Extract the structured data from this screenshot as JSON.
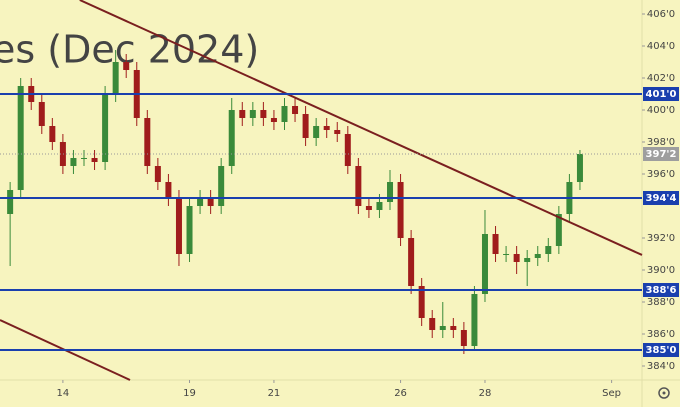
{
  "chart_data": {
    "type": "candlestick",
    "watermark": "es (Dec 2024)",
    "up_color": "#3a8a3a",
    "down_color": "#a01c1c",
    "x": [
      -1.25,
      -1,
      -0.75,
      -0.5,
      -0.25,
      0,
      0.25,
      0.5,
      0.75,
      1,
      1.25,
      1.5,
      1.75,
      2,
      2.25,
      2.5,
      2.75,
      3,
      3.25,
      3.5,
      3.75,
      4,
      4.25,
      4.5,
      4.75,
      5,
      5.25,
      5.5,
      5.75,
      6,
      6.25,
      6.5,
      6.75,
      7,
      7.25,
      7.5,
      7.75,
      8,
      8.25,
      8.5,
      8.75,
      9,
      9.25,
      9.5,
      9.75,
      10,
      10.25,
      10.5,
      10.75,
      11,
      11.25,
      11.5,
      11.75,
      12,
      12.25
    ],
    "open": [
      393.5,
      395,
      401.5,
      400.5,
      399,
      398,
      396.5,
      397,
      397,
      396.75,
      401,
      403,
      402.5,
      399.5,
      396.5,
      395.5,
      394.5,
      391,
      394,
      394.5,
      394,
      396.5,
      400,
      399.5,
      400,
      399.5,
      399.25,
      400.25,
      399.75,
      398.25,
      399,
      398.75,
      398.5,
      396.5,
      394,
      393.75,
      394.25,
      395.5,
      392,
      389,
      387,
      386.25,
      386.5,
      386.25,
      385.25,
      388.5,
      392.25,
      391,
      391,
      390.5,
      390.75,
      391,
      391.5,
      393.5,
      395.5
    ],
    "high": [
      395.5,
      402,
      402,
      401,
      399.5,
      398.5,
      397.5,
      397.5,
      397.5,
      401.5,
      403.75,
      403.5,
      403,
      400,
      397,
      396,
      395,
      394.5,
      395,
      395,
      397,
      400.75,
      400.5,
      400.5,
      400.5,
      400,
      400.75,
      400.75,
      400.25,
      399.5,
      399.5,
      399.25,
      399,
      397,
      394.5,
      394.75,
      396.25,
      396,
      392.5,
      389.5,
      387.5,
      388,
      387,
      386.75,
      389,
      393.75,
      392.75,
      391.5,
      391.5,
      391.25,
      391.5,
      392,
      394,
      396,
      397.5
    ],
    "low": [
      390.25,
      394.5,
      400,
      398.5,
      397.5,
      396,
      396,
      396.5,
      396.25,
      396.25,
      400.5,
      402,
      399,
      396,
      395,
      394,
      390.25,
      390.5,
      393.5,
      393.5,
      393.5,
      396,
      399,
      399,
      399,
      398.75,
      398.75,
      399.25,
      397.75,
      397.75,
      398.25,
      398,
      396,
      393.5,
      393.25,
      393.25,
      393.75,
      391.5,
      388.5,
      386.5,
      385.75,
      385.75,
      385.75,
      384.75,
      385,
      388,
      390.5,
      390.5,
      389.75,
      389,
      390.25,
      390.5,
      391,
      393,
      395
    ],
    "close": [
      395,
      401.5,
      400.5,
      399,
      398,
      396.5,
      397,
      397,
      396.75,
      401,
      403,
      402.5,
      399.5,
      396.5,
      395.5,
      394.5,
      391,
      394,
      394.5,
      394,
      396.5,
      400,
      399.5,
      400,
      399.5,
      399.25,
      400.25,
      399.75,
      398.25,
      399,
      398.75,
      398.5,
      396.5,
      394,
      393.75,
      394.25,
      395.5,
      392,
      389,
      387,
      386.25,
      386.5,
      386.25,
      385.25,
      388.5,
      392.25,
      391,
      391,
      390.5,
      390.75,
      391,
      391.5,
      393.5,
      395.5,
      397.25
    ],
    "xlim": [
      -1.49,
      13.72
    ],
    "ylim": [
      383.125,
      406.875
    ],
    "xticks": [
      {
        "value": 0,
        "label": "14"
      },
      {
        "value": 3,
        "label": "19"
      },
      {
        "value": 5,
        "label": "21"
      },
      {
        "value": 8,
        "label": "26"
      },
      {
        "value": 10,
        "label": "28"
      },
      {
        "value": 13,
        "label": "Sep"
      }
    ],
    "yticks": [
      {
        "value": 406,
        "label": "406'0"
      },
      {
        "value": 404,
        "label": "404'0"
      },
      {
        "value": 402,
        "label": "402'0"
      },
      {
        "value": 400,
        "label": "400'0"
      },
      {
        "value": 398,
        "label": "398'0"
      },
      {
        "value": 396,
        "label": "396'0"
      },
      {
        "value": 392,
        "label": "392'0"
      },
      {
        "value": 390,
        "label": "390'0"
      },
      {
        "value": 388,
        "label": "388'0"
      },
      {
        "value": 386,
        "label": "386'0"
      },
      {
        "value": 384,
        "label": "384'0"
      }
    ],
    "levels": [
      {
        "value": 401,
        "label": "401'0"
      },
      {
        "value": 394.5,
        "label": "394'4"
      },
      {
        "value": 388.75,
        "label": "388'6"
      },
      {
        "value": 385,
        "label": "385'0"
      }
    ],
    "level_color": "#1a3fae",
    "current_price": {
      "value": 397.25,
      "label": "397'2"
    },
    "trendlines": [
      {
        "x": [
          0.4,
          13.72
        ],
        "y": [
          406.875,
          390.94
        ]
      },
      {
        "x": [
          -1.49,
          1.59
        ],
        "y": [
          386.875,
          383.125
        ]
      }
    ],
    "trendline_color": "#7a1f1f"
  }
}
